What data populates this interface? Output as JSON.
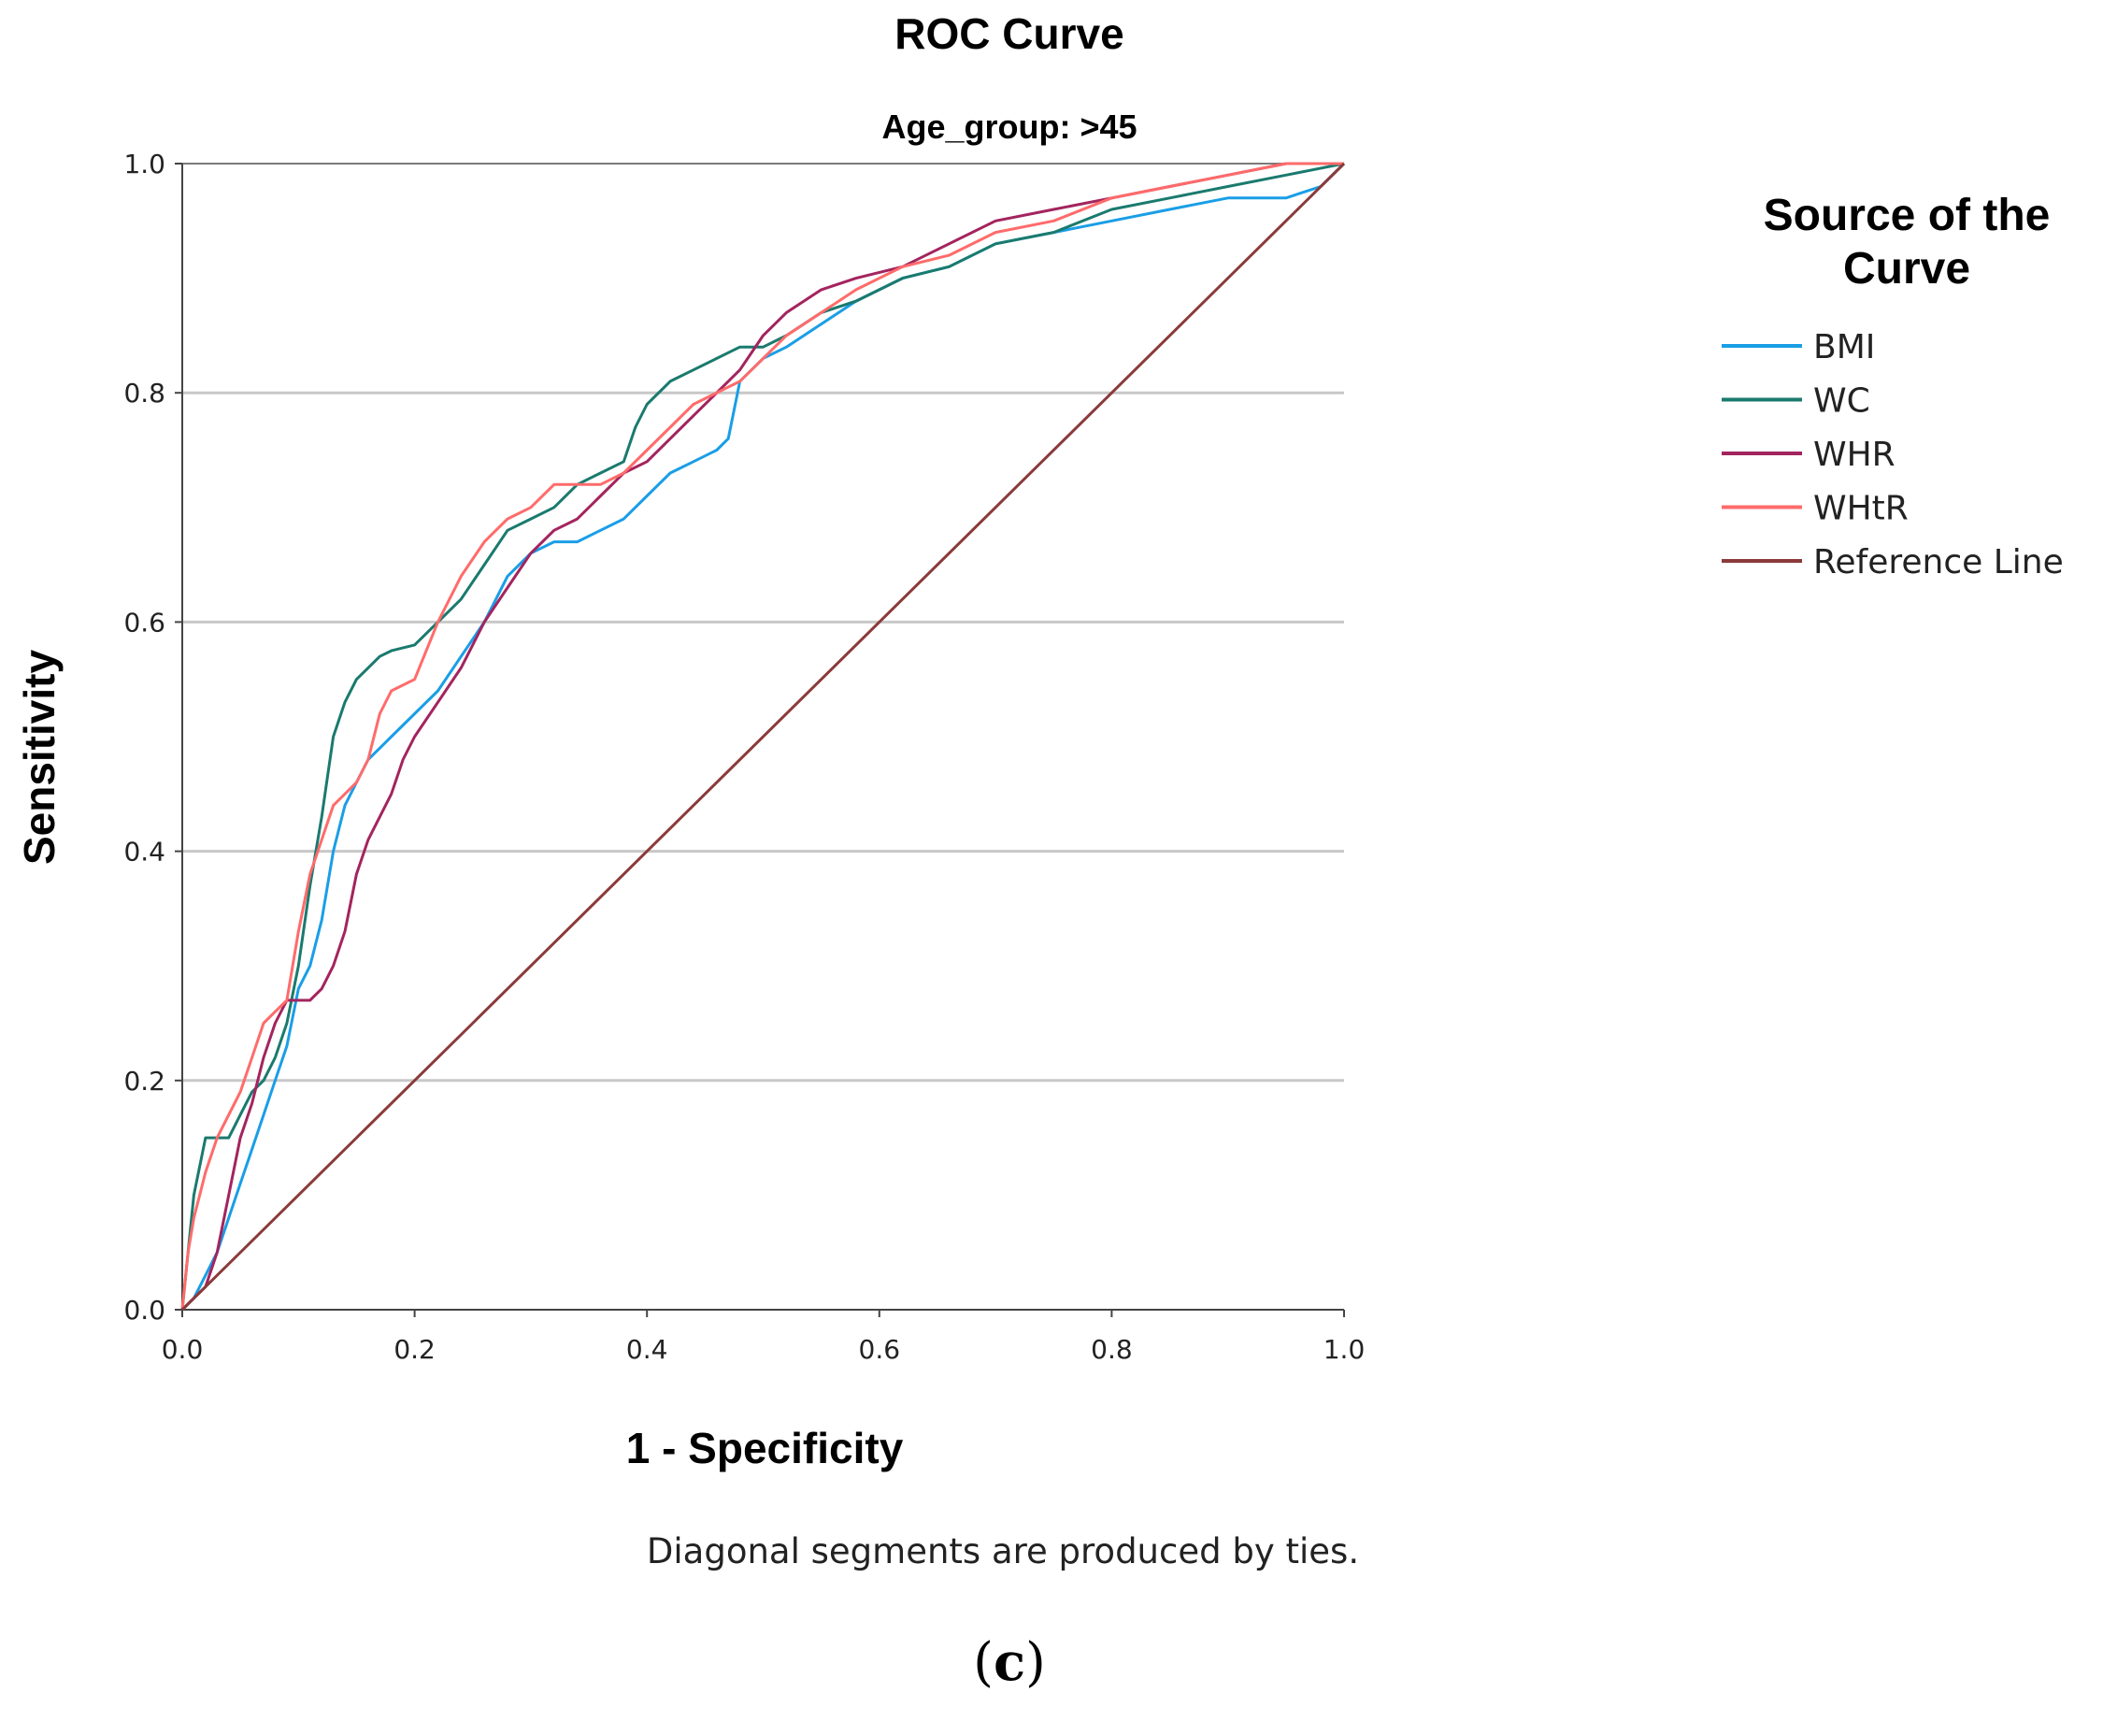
{
  "chart_data": {
    "type": "line",
    "title": "ROC Curve",
    "subtitle": "Age_group: >45",
    "xlabel": "1 - Specificity",
    "ylabel": "Sensitivity",
    "xlim": [
      0,
      1
    ],
    "ylim": [
      0,
      1
    ],
    "x_ticks": [
      "0.0",
      "0.2",
      "0.4",
      "0.6",
      "0.8",
      "1.0"
    ],
    "y_ticks": [
      "0.0",
      "0.2",
      "0.4",
      "0.6",
      "0.8",
      "1.0"
    ],
    "grid": "horizontal",
    "legend_title": "Source of the Curve",
    "legend_position": "right",
    "footnote": "Diagonal segments are produced by ties.",
    "panel_label_open": "(",
    "panel_label_letter": "c",
    "panel_label_close": ")",
    "series": [
      {
        "name": "BMI",
        "color": "#1a9ee6",
        "points": [
          [
            0,
            0
          ],
          [
            0.01,
            0.01
          ],
          [
            0.02,
            0.03
          ],
          [
            0.03,
            0.05
          ],
          [
            0.04,
            0.08
          ],
          [
            0.05,
            0.11
          ],
          [
            0.06,
            0.14
          ],
          [
            0.07,
            0.17
          ],
          [
            0.08,
            0.2
          ],
          [
            0.09,
            0.23
          ],
          [
            0.1,
            0.28
          ],
          [
            0.11,
            0.3
          ],
          [
            0.12,
            0.34
          ],
          [
            0.13,
            0.4
          ],
          [
            0.14,
            0.44
          ],
          [
            0.15,
            0.46
          ],
          [
            0.16,
            0.48
          ],
          [
            0.17,
            0.49
          ],
          [
            0.18,
            0.5
          ],
          [
            0.2,
            0.52
          ],
          [
            0.22,
            0.54
          ],
          [
            0.24,
            0.57
          ],
          [
            0.26,
            0.6
          ],
          [
            0.27,
            0.62
          ],
          [
            0.28,
            0.64
          ],
          [
            0.3,
            0.66
          ],
          [
            0.32,
            0.67
          ],
          [
            0.34,
            0.67
          ],
          [
            0.36,
            0.68
          ],
          [
            0.38,
            0.69
          ],
          [
            0.4,
            0.71
          ],
          [
            0.42,
            0.73
          ],
          [
            0.44,
            0.74
          ],
          [
            0.46,
            0.75
          ],
          [
            0.47,
            0.76
          ],
          [
            0.48,
            0.81
          ],
          [
            0.5,
            0.83
          ],
          [
            0.52,
            0.84
          ],
          [
            0.55,
            0.86
          ],
          [
            0.58,
            0.88
          ],
          [
            0.62,
            0.9
          ],
          [
            0.66,
            0.91
          ],
          [
            0.7,
            0.93
          ],
          [
            0.75,
            0.94
          ],
          [
            0.8,
            0.95
          ],
          [
            0.85,
            0.96
          ],
          [
            0.9,
            0.97
          ],
          [
            0.95,
            0.97
          ],
          [
            0.98,
            0.98
          ],
          [
            1,
            1
          ]
        ]
      },
      {
        "name": "WC",
        "color": "#1a7a6e",
        "points": [
          [
            0,
            0
          ],
          [
            0.005,
            0.05
          ],
          [
            0.01,
            0.1
          ],
          [
            0.02,
            0.15
          ],
          [
            0.03,
            0.15
          ],
          [
            0.04,
            0.15
          ],
          [
            0.05,
            0.17
          ],
          [
            0.06,
            0.19
          ],
          [
            0.07,
            0.2
          ],
          [
            0.08,
            0.22
          ],
          [
            0.09,
            0.25
          ],
          [
            0.1,
            0.3
          ],
          [
            0.11,
            0.37
          ],
          [
            0.12,
            0.43
          ],
          [
            0.13,
            0.5
          ],
          [
            0.14,
            0.53
          ],
          [
            0.15,
            0.55
          ],
          [
            0.16,
            0.56
          ],
          [
            0.17,
            0.57
          ],
          [
            0.18,
            0.575
          ],
          [
            0.2,
            0.58
          ],
          [
            0.22,
            0.6
          ],
          [
            0.24,
            0.62
          ],
          [
            0.26,
            0.65
          ],
          [
            0.28,
            0.68
          ],
          [
            0.3,
            0.69
          ],
          [
            0.32,
            0.7
          ],
          [
            0.34,
            0.72
          ],
          [
            0.36,
            0.73
          ],
          [
            0.38,
            0.74
          ],
          [
            0.39,
            0.77
          ],
          [
            0.4,
            0.79
          ],
          [
            0.42,
            0.81
          ],
          [
            0.44,
            0.82
          ],
          [
            0.46,
            0.83
          ],
          [
            0.48,
            0.84
          ],
          [
            0.5,
            0.84
          ],
          [
            0.52,
            0.85
          ],
          [
            0.55,
            0.87
          ],
          [
            0.58,
            0.88
          ],
          [
            0.62,
            0.9
          ],
          [
            0.66,
            0.91
          ],
          [
            0.7,
            0.93
          ],
          [
            0.75,
            0.94
          ],
          [
            0.8,
            0.96
          ],
          [
            0.85,
            0.97
          ],
          [
            0.9,
            0.98
          ],
          [
            0.95,
            0.99
          ],
          [
            1,
            1
          ]
        ]
      },
      {
        "name": "WHR",
        "color": "#a3245e",
        "points": [
          [
            0,
            0
          ],
          [
            0.01,
            0.01
          ],
          [
            0.02,
            0.02
          ],
          [
            0.03,
            0.05
          ],
          [
            0.04,
            0.1
          ],
          [
            0.05,
            0.15
          ],
          [
            0.06,
            0.18
          ],
          [
            0.07,
            0.22
          ],
          [
            0.08,
            0.25
          ],
          [
            0.09,
            0.27
          ],
          [
            0.1,
            0.27
          ],
          [
            0.11,
            0.27
          ],
          [
            0.12,
            0.28
          ],
          [
            0.13,
            0.3
          ],
          [
            0.14,
            0.33
          ],
          [
            0.15,
            0.38
          ],
          [
            0.16,
            0.41
          ],
          [
            0.17,
            0.43
          ],
          [
            0.18,
            0.45
          ],
          [
            0.19,
            0.48
          ],
          [
            0.2,
            0.5
          ],
          [
            0.22,
            0.53
          ],
          [
            0.24,
            0.56
          ],
          [
            0.26,
            0.6
          ],
          [
            0.28,
            0.63
          ],
          [
            0.3,
            0.66
          ],
          [
            0.32,
            0.68
          ],
          [
            0.34,
            0.69
          ],
          [
            0.36,
            0.71
          ],
          [
            0.38,
            0.73
          ],
          [
            0.4,
            0.74
          ],
          [
            0.42,
            0.76
          ],
          [
            0.44,
            0.78
          ],
          [
            0.46,
            0.8
          ],
          [
            0.48,
            0.82
          ],
          [
            0.5,
            0.85
          ],
          [
            0.52,
            0.87
          ],
          [
            0.55,
            0.89
          ],
          [
            0.58,
            0.9
          ],
          [
            0.62,
            0.91
          ],
          [
            0.66,
            0.93
          ],
          [
            0.7,
            0.95
          ],
          [
            0.75,
            0.96
          ],
          [
            0.8,
            0.97
          ],
          [
            0.85,
            0.98
          ],
          [
            0.9,
            0.99
          ],
          [
            0.95,
            1
          ],
          [
            1,
            1
          ]
        ]
      },
      {
        "name": "WHtR",
        "color": "#ff6b6b",
        "points": [
          [
            0,
            0
          ],
          [
            0.005,
            0.05
          ],
          [
            0.01,
            0.08
          ],
          [
            0.02,
            0.12
          ],
          [
            0.03,
            0.15
          ],
          [
            0.04,
            0.17
          ],
          [
            0.05,
            0.19
          ],
          [
            0.06,
            0.22
          ],
          [
            0.07,
            0.25
          ],
          [
            0.08,
            0.26
          ],
          [
            0.09,
            0.27
          ],
          [
            0.1,
            0.33
          ],
          [
            0.11,
            0.38
          ],
          [
            0.12,
            0.41
          ],
          [
            0.13,
            0.44
          ],
          [
            0.14,
            0.45
          ],
          [
            0.15,
            0.46
          ],
          [
            0.16,
            0.48
          ],
          [
            0.17,
            0.52
          ],
          [
            0.18,
            0.54
          ],
          [
            0.2,
            0.55
          ],
          [
            0.22,
            0.6
          ],
          [
            0.24,
            0.64
          ],
          [
            0.26,
            0.67
          ],
          [
            0.28,
            0.69
          ],
          [
            0.3,
            0.7
          ],
          [
            0.32,
            0.72
          ],
          [
            0.34,
            0.72
          ],
          [
            0.36,
            0.72
          ],
          [
            0.38,
            0.73
          ],
          [
            0.4,
            0.75
          ],
          [
            0.42,
            0.77
          ],
          [
            0.44,
            0.79
          ],
          [
            0.46,
            0.8
          ],
          [
            0.48,
            0.81
          ],
          [
            0.5,
            0.83
          ],
          [
            0.52,
            0.85
          ],
          [
            0.55,
            0.87
          ],
          [
            0.58,
            0.89
          ],
          [
            0.62,
            0.91
          ],
          [
            0.66,
            0.92
          ],
          [
            0.7,
            0.94
          ],
          [
            0.75,
            0.95
          ],
          [
            0.8,
            0.97
          ],
          [
            0.85,
            0.98
          ],
          [
            0.9,
            0.99
          ],
          [
            0.95,
            1
          ],
          [
            1,
            1
          ]
        ]
      },
      {
        "name": "Reference Line",
        "color": "#8b3a3a",
        "points": [
          [
            0,
            0
          ],
          [
            1,
            1
          ]
        ]
      }
    ]
  }
}
